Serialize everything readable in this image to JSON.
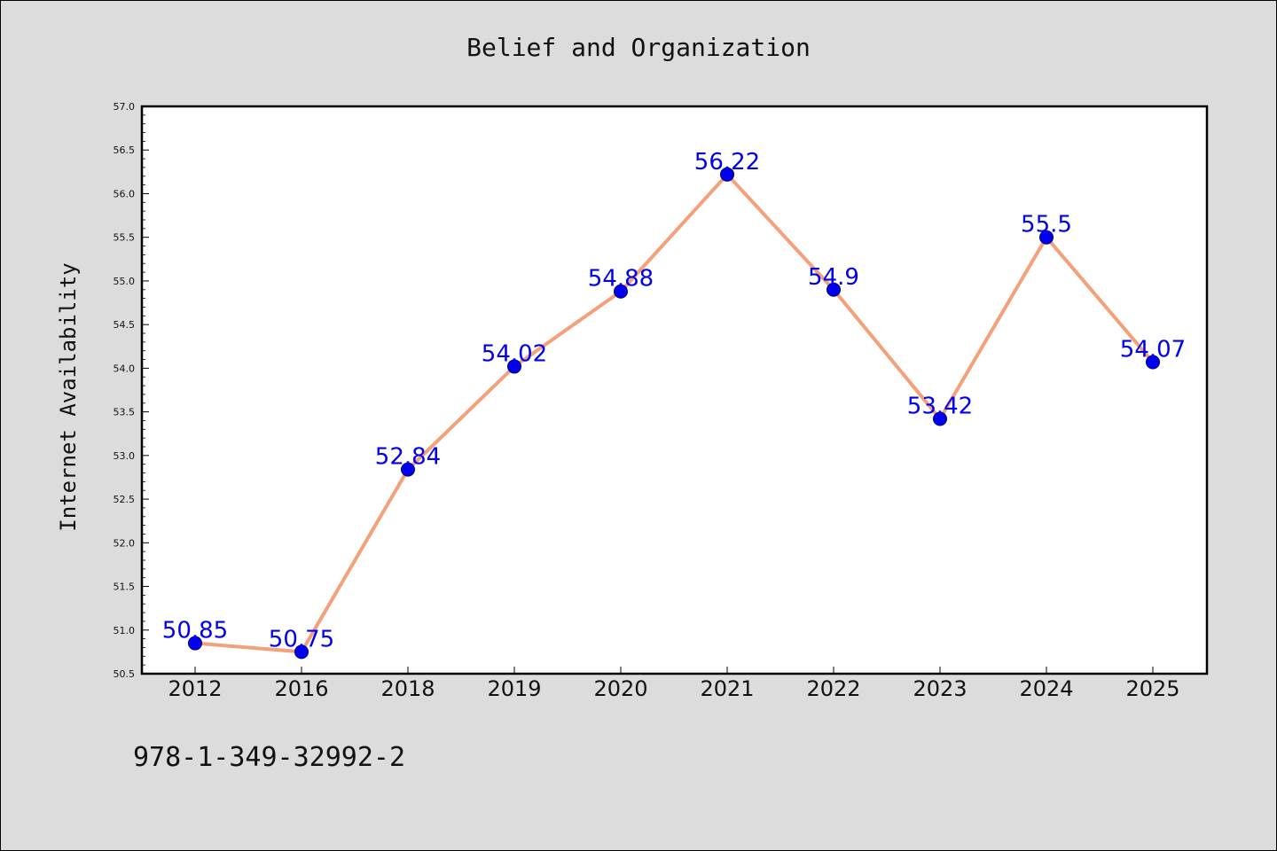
{
  "chart_data": {
    "type": "line",
    "title": "Belief and Organization",
    "xlabel": "",
    "ylabel": "Internet Availability",
    "categories": [
      "2012",
      "2016",
      "2018",
      "2019",
      "2020",
      "2021",
      "2022",
      "2023",
      "2024",
      "2025"
    ],
    "series": [
      {
        "values": [
          50.85,
          50.75,
          52.84,
          54.02,
          54.88,
          56.22,
          54.9,
          53.42,
          55.5,
          54.07
        ],
        "line_color": "#f4a07a",
        "marker_color": "#0000ee"
      }
    ],
    "data_labels": [
      "50.85",
      "50.75",
      "52.84",
      "54.02",
      "54.88",
      "56.22",
      "54.9",
      "53.42",
      "55.5",
      "54.07"
    ],
    "data_label_color": "#0000ee",
    "ylim": [
      50.5,
      57.0
    ],
    "yticks": [
      "50.5",
      "51.0",
      "51.5",
      "52.0",
      "52.5",
      "53.0",
      "53.5",
      "54.0",
      "54.5",
      "55.0",
      "55.5",
      "56.0",
      "56.5",
      "57.0"
    ],
    "grid": false,
    "legend": "none"
  },
  "footer": {
    "isbn": "978-1-349-32992-2"
  },
  "colors": {
    "background": "#dcdcdc",
    "plot_background": "#ffffff"
  }
}
